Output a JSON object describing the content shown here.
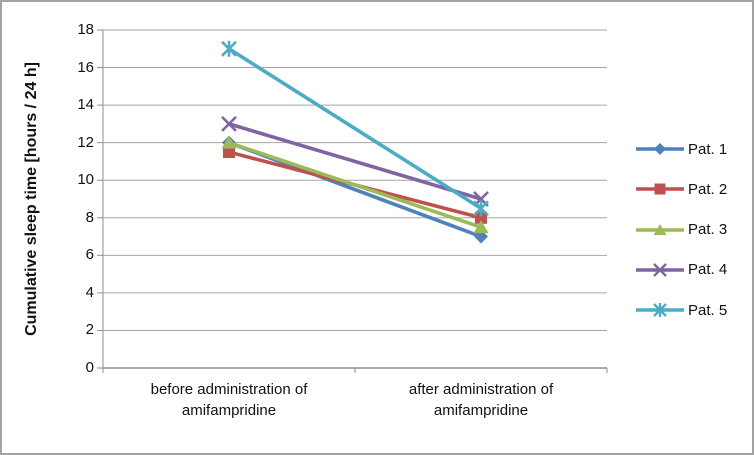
{
  "chart_data": {
    "type": "line",
    "title": "",
    "categories": [
      "before administration of amifampridine",
      "after administration of amifampridine"
    ],
    "series": [
      {
        "name": "Pat. 1",
        "values": [
          12,
          7
        ],
        "color": "#4F81BD",
        "marker": "diamond"
      },
      {
        "name": "Pat. 2",
        "values": [
          11.5,
          8
        ],
        "color": "#C0504D",
        "marker": "square"
      },
      {
        "name": "Pat. 3",
        "values": [
          12,
          7.5
        ],
        "color": "#9BBB59",
        "marker": "triangle"
      },
      {
        "name": "Pat. 4",
        "values": [
          13,
          9
        ],
        "color": "#8064A2",
        "marker": "x"
      },
      {
        "name": "Pat. 5",
        "values": [
          17,
          8.5
        ],
        "color": "#4BACC6",
        "marker": "asterisk"
      }
    ],
    "xlabel": "",
    "ylabel": "Cumulative sleep time [hours / 24 h]",
    "ylim": [
      0,
      18
    ],
    "ytick_step": 2,
    "grid": true,
    "legend_position": "right"
  },
  "style": {
    "grid_color": "#a6a6a6",
    "axis_color": "#8e8e8e",
    "background": "#ffffff",
    "frame_border": "#a3a3a3"
  }
}
